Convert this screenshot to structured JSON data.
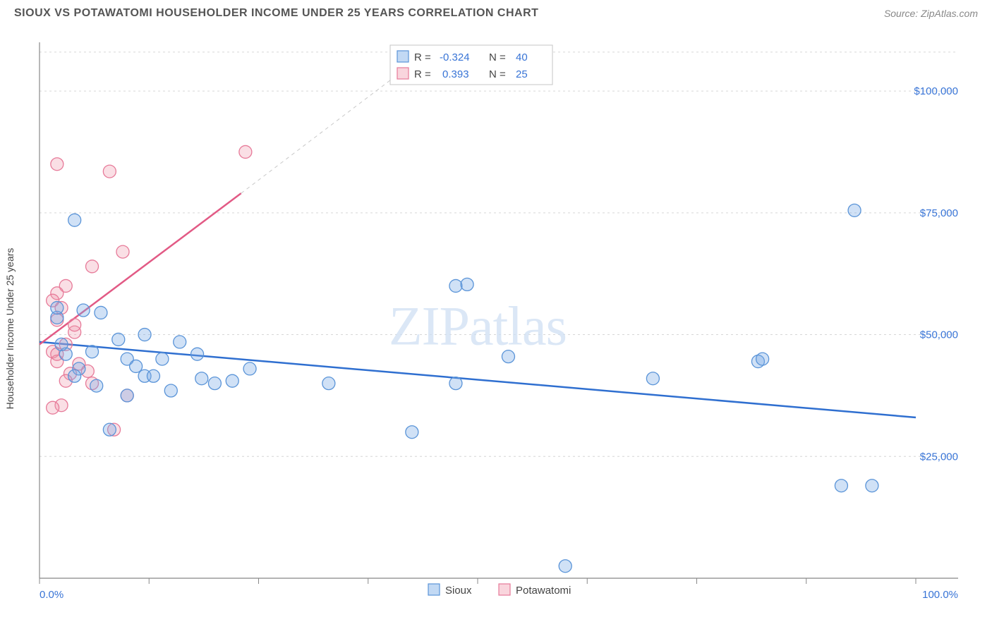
{
  "header": {
    "title": "SIOUX VS POTAWATOMI HOUSEHOLDER INCOME UNDER 25 YEARS CORRELATION CHART",
    "source_prefix": "Source: ",
    "source_name": "ZipAtlas.com"
  },
  "watermark_text": "ZIPatlas",
  "chart": {
    "type": "scatter",
    "ylabel": "Householder Income Under 25 years",
    "xlim": [
      0,
      100
    ],
    "ylim": [
      0,
      110000
    ],
    "x_ticks_pct": [
      0,
      12.5,
      25,
      37.5,
      50,
      62.5,
      75,
      87.5,
      100
    ],
    "x_tick_labels": {
      "0": "0.0%",
      "100": "100.0%"
    },
    "y_gridlines": [
      25000,
      50000,
      75000,
      100000,
      108000
    ],
    "y_tick_labels": {
      "25000": "$25,000",
      "50000": "$50,000",
      "75000": "$75,000",
      "100000": "$100,000"
    },
    "background_color": "#ffffff",
    "grid_color": "#d6d6d6",
    "axis_color": "#888888",
    "point_radius": 9,
    "series": {
      "sioux": {
        "label": "Sioux",
        "color_fill": "rgba(120,170,230,0.35)",
        "color_stroke": "#5a94d8",
        "trend_color": "#2f6fd0",
        "trend": {
          "x1": 0,
          "y1": 48500,
          "x2": 100,
          "y2": 33000
        },
        "stats": {
          "R": "-0.324",
          "N": "40"
        },
        "points": [
          [
            4.0,
            73500
          ],
          [
            47.5,
            60000
          ],
          [
            48.8,
            60300
          ],
          [
            53.5,
            45500
          ],
          [
            42.5,
            30000
          ],
          [
            33.0,
            40000
          ],
          [
            7.0,
            54500
          ],
          [
            5.0,
            55000
          ],
          [
            9.0,
            49000
          ],
          [
            10.0,
            45000
          ],
          [
            12.0,
            50000
          ],
          [
            14.0,
            45000
          ],
          [
            16.0,
            48500
          ],
          [
            18.0,
            46000
          ],
          [
            20.0,
            40000
          ],
          [
            22.0,
            40500
          ],
          [
            24.0,
            43000
          ],
          [
            8.0,
            30500
          ],
          [
            12.0,
            41500
          ],
          [
            13.0,
            41500
          ],
          [
            15.0,
            38500
          ],
          [
            10.0,
            37500
          ],
          [
            3.0,
            46000
          ],
          [
            2.5,
            48000
          ],
          [
            2.0,
            53500
          ],
          [
            2.0,
            55500
          ],
          [
            4.5,
            43000
          ],
          [
            82.0,
            44500
          ],
          [
            93.0,
            75500
          ],
          [
            82.5,
            45000
          ],
          [
            91.5,
            19000
          ],
          [
            95.0,
            19000
          ],
          [
            70.0,
            41000
          ],
          [
            60.0,
            2500
          ],
          [
            47.5,
            40000
          ],
          [
            6.0,
            46500
          ],
          [
            4.0,
            41500
          ],
          [
            6.5,
            39500
          ],
          [
            11.0,
            43500
          ],
          [
            18.5,
            41000
          ]
        ]
      },
      "potawatomi": {
        "label": "Potawatomi",
        "color_fill": "rgba(240,150,170,0.30)",
        "color_stroke": "#e77a99",
        "trend_color": "#e25a85",
        "trend_solid": {
          "x1": 0,
          "y1": 48000,
          "x2": 23,
          "y2": 79000
        },
        "trend_dash": {
          "x1": 23,
          "y1": 79000,
          "x2": 45,
          "y2": 109000
        },
        "stats": {
          "R": "0.393",
          "N": "25"
        },
        "points": [
          [
            2.0,
            85000
          ],
          [
            8.0,
            83500
          ],
          [
            23.5,
            87500
          ],
          [
            9.5,
            67000
          ],
          [
            6.0,
            64000
          ],
          [
            3.0,
            60000
          ],
          [
            2.0,
            58500
          ],
          [
            1.5,
            57000
          ],
          [
            2.5,
            55500
          ],
          [
            2.0,
            53000
          ],
          [
            4.0,
            50500
          ],
          [
            3.0,
            48000
          ],
          [
            1.5,
            46500
          ],
          [
            2.0,
            44500
          ],
          [
            4.5,
            44000
          ],
          [
            5.5,
            42500
          ],
          [
            3.5,
            42000
          ],
          [
            3.0,
            40500
          ],
          [
            6.0,
            40000
          ],
          [
            10.0,
            37500
          ],
          [
            2.5,
            35500
          ],
          [
            1.5,
            35000
          ],
          [
            8.5,
            30500
          ],
          [
            2.0,
            46000
          ],
          [
            4.0,
            52000
          ]
        ]
      }
    },
    "stats_box": {
      "r_label": "R =",
      "n_label": "N ="
    },
    "legend": {
      "sioux": "Sioux",
      "potawatomi": "Potawatomi"
    }
  }
}
